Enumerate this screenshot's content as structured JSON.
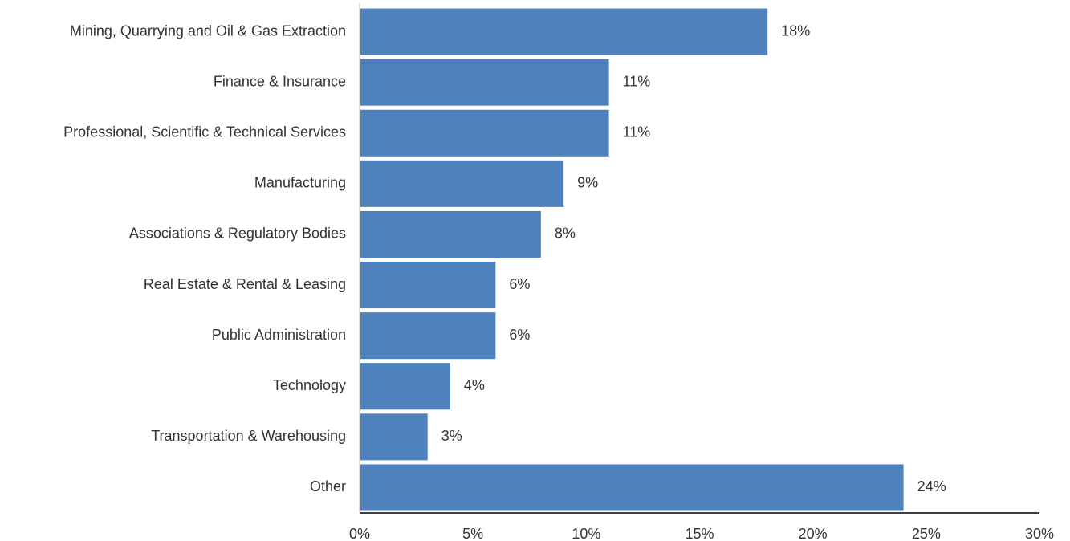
{
  "chart_data": {
    "type": "bar",
    "orientation": "horizontal",
    "categories": [
      "Mining, Quarrying and Oil & Gas Extraction",
      "Finance & Insurance",
      "Professional, Scientific & Technical Services",
      "Manufacturing",
      "Associations & Regulatory Bodies",
      "Real Estate & Rental & Leasing",
      "Public Administration",
      "Technology",
      "Transportation & Warehousing",
      "Other"
    ],
    "values": [
      18,
      11,
      11,
      9,
      8,
      6,
      6,
      4,
      3,
      24
    ],
    "value_labels": [
      "18%",
      "11%",
      "11%",
      "9%",
      "8%",
      "6%",
      "6%",
      "4%",
      "3%",
      "24%"
    ],
    "title": "",
    "xlabel": "",
    "ylabel": "",
    "xlim": [
      0,
      30
    ],
    "x_ticks": [
      0,
      5,
      10,
      15,
      20,
      25,
      30
    ],
    "x_tick_labels": [
      "0%",
      "5%",
      "10%",
      "15%",
      "20%",
      "25%",
      "30%"
    ],
    "grid": false,
    "legend": "none",
    "colors": {
      "bar": "#4f81bd",
      "axis": "#000000",
      "category_axis": "#d9d9d9",
      "text": "#333333"
    }
  }
}
